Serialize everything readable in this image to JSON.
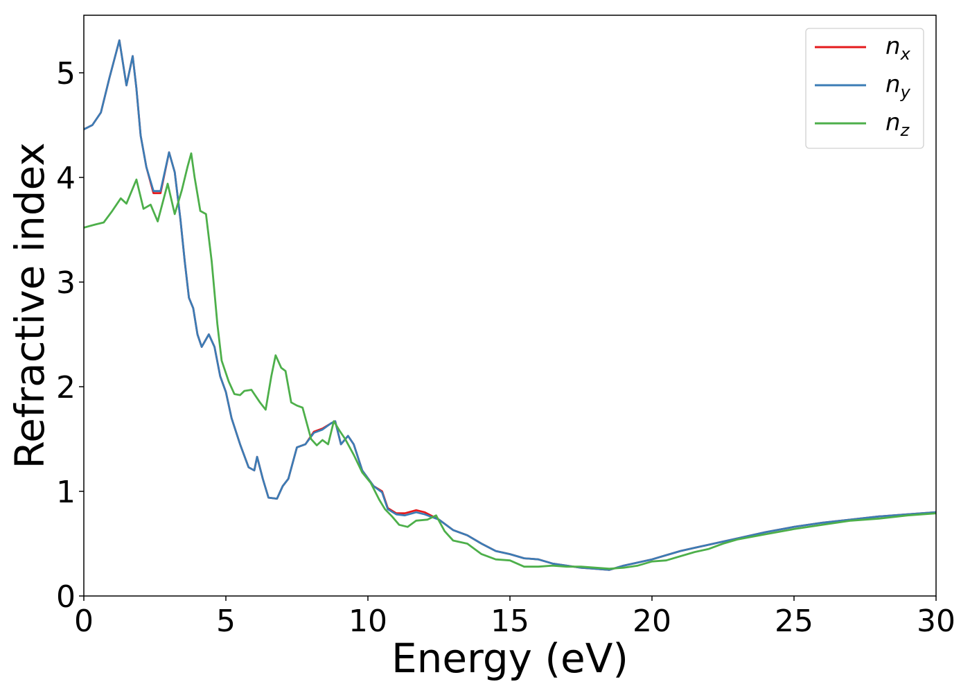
{
  "chart_data": {
    "type": "line",
    "title": "",
    "xlabel": "Energy (eV)",
    "ylabel": "Refractive index",
    "xlim": [
      0,
      30
    ],
    "ylim": [
      0,
      5.55
    ],
    "xticks": [
      0,
      5,
      10,
      15,
      20,
      25,
      30
    ],
    "yticks": [
      0,
      1,
      2,
      3,
      4,
      5
    ],
    "grid": false,
    "legend_position": "top-right",
    "series": [
      {
        "name": "n_x",
        "label_base": "n",
        "label_sub": "x",
        "color": "#e41a1c",
        "points": [
          [
            0,
            4.46
          ],
          [
            0.3,
            4.5
          ],
          [
            0.6,
            4.62
          ],
          [
            0.9,
            4.95
          ],
          [
            1.25,
            5.31
          ],
          [
            1.5,
            4.88
          ],
          [
            1.72,
            5.16
          ],
          [
            1.85,
            4.85
          ],
          [
            2.0,
            4.4
          ],
          [
            2.2,
            4.1
          ],
          [
            2.45,
            3.85
          ],
          [
            2.7,
            3.85
          ],
          [
            3.0,
            4.24
          ],
          [
            3.2,
            4.05
          ],
          [
            3.4,
            3.6
          ],
          [
            3.55,
            3.2
          ],
          [
            3.7,
            2.85
          ],
          [
            3.85,
            2.75
          ],
          [
            4.0,
            2.5
          ],
          [
            4.15,
            2.38
          ],
          [
            4.4,
            2.5
          ],
          [
            4.6,
            2.38
          ],
          [
            4.8,
            2.1
          ],
          [
            5.0,
            1.95
          ],
          [
            5.2,
            1.7
          ],
          [
            5.5,
            1.45
          ],
          [
            5.8,
            1.23
          ],
          [
            6.0,
            1.2
          ],
          [
            6.1,
            1.33
          ],
          [
            6.3,
            1.12
          ],
          [
            6.5,
            0.94
          ],
          [
            6.8,
            0.93
          ],
          [
            7.0,
            1.05
          ],
          [
            7.2,
            1.12
          ],
          [
            7.5,
            1.42
          ],
          [
            7.8,
            1.45
          ],
          [
            8.1,
            1.57
          ],
          [
            8.4,
            1.6
          ],
          [
            8.7,
            1.65
          ],
          [
            8.85,
            1.67
          ],
          [
            9.05,
            1.45
          ],
          [
            9.3,
            1.53
          ],
          [
            9.5,
            1.45
          ],
          [
            9.8,
            1.2
          ],
          [
            10.2,
            1.05
          ],
          [
            10.5,
            1.0
          ],
          [
            10.7,
            0.84
          ],
          [
            11.0,
            0.79
          ],
          [
            11.3,
            0.79
          ],
          [
            11.7,
            0.82
          ],
          [
            12.0,
            0.8
          ],
          [
            12.5,
            0.73
          ],
          [
            13.0,
            0.63
          ],
          [
            13.5,
            0.58
          ],
          [
            14.0,
            0.5
          ],
          [
            14.5,
            0.43
          ],
          [
            15.0,
            0.4
          ],
          [
            15.5,
            0.36
          ],
          [
            16.0,
            0.35
          ],
          [
            16.5,
            0.31
          ],
          [
            17.0,
            0.29
          ],
          [
            17.5,
            0.27
          ],
          [
            18.0,
            0.26
          ],
          [
            18.5,
            0.25
          ],
          [
            19.0,
            0.29
          ],
          [
            19.5,
            0.32
          ],
          [
            20.0,
            0.35
          ],
          [
            20.5,
            0.39
          ],
          [
            21.0,
            0.43
          ],
          [
            21.5,
            0.46
          ],
          [
            22.0,
            0.49
          ],
          [
            22.5,
            0.52
          ],
          [
            23.0,
            0.55
          ],
          [
            24.0,
            0.61
          ],
          [
            25.0,
            0.66
          ],
          [
            26.0,
            0.7
          ],
          [
            27.0,
            0.73
          ],
          [
            28.0,
            0.76
          ],
          [
            29.0,
            0.78
          ],
          [
            30.0,
            0.8
          ]
        ]
      },
      {
        "name": "n_y",
        "label_base": "n",
        "label_sub": "y",
        "color": "#3b7cb5",
        "points": [
          [
            0,
            4.46
          ],
          [
            0.3,
            4.5
          ],
          [
            0.6,
            4.62
          ],
          [
            0.9,
            4.95
          ],
          [
            1.25,
            5.31
          ],
          [
            1.5,
            4.88
          ],
          [
            1.72,
            5.16
          ],
          [
            1.85,
            4.85
          ],
          [
            2.0,
            4.4
          ],
          [
            2.2,
            4.1
          ],
          [
            2.45,
            3.87
          ],
          [
            2.7,
            3.87
          ],
          [
            3.0,
            4.24
          ],
          [
            3.2,
            4.05
          ],
          [
            3.4,
            3.6
          ],
          [
            3.55,
            3.2
          ],
          [
            3.7,
            2.85
          ],
          [
            3.85,
            2.75
          ],
          [
            4.0,
            2.5
          ],
          [
            4.15,
            2.38
          ],
          [
            4.4,
            2.5
          ],
          [
            4.6,
            2.38
          ],
          [
            4.8,
            2.1
          ],
          [
            5.0,
            1.95
          ],
          [
            5.2,
            1.7
          ],
          [
            5.5,
            1.45
          ],
          [
            5.8,
            1.23
          ],
          [
            6.0,
            1.2
          ],
          [
            6.1,
            1.33
          ],
          [
            6.3,
            1.12
          ],
          [
            6.5,
            0.94
          ],
          [
            6.8,
            0.93
          ],
          [
            7.0,
            1.05
          ],
          [
            7.2,
            1.12
          ],
          [
            7.5,
            1.42
          ],
          [
            7.8,
            1.45
          ],
          [
            8.1,
            1.56
          ],
          [
            8.4,
            1.59
          ],
          [
            8.7,
            1.65
          ],
          [
            8.85,
            1.67
          ],
          [
            9.05,
            1.45
          ],
          [
            9.3,
            1.53
          ],
          [
            9.5,
            1.45
          ],
          [
            9.8,
            1.2
          ],
          [
            10.2,
            1.05
          ],
          [
            10.5,
            0.99
          ],
          [
            10.7,
            0.83
          ],
          [
            11.0,
            0.78
          ],
          [
            11.3,
            0.77
          ],
          [
            11.7,
            0.8
          ],
          [
            12.0,
            0.78
          ],
          [
            12.5,
            0.73
          ],
          [
            13.0,
            0.63
          ],
          [
            13.5,
            0.58
          ],
          [
            14.0,
            0.5
          ],
          [
            14.5,
            0.43
          ],
          [
            15.0,
            0.4
          ],
          [
            15.5,
            0.36
          ],
          [
            16.0,
            0.35
          ],
          [
            16.5,
            0.31
          ],
          [
            17.0,
            0.29
          ],
          [
            17.5,
            0.27
          ],
          [
            18.0,
            0.26
          ],
          [
            18.5,
            0.25
          ],
          [
            19.0,
            0.29
          ],
          [
            19.5,
            0.32
          ],
          [
            20.0,
            0.35
          ],
          [
            20.5,
            0.39
          ],
          [
            21.0,
            0.43
          ],
          [
            21.5,
            0.46
          ],
          [
            22.0,
            0.49
          ],
          [
            22.5,
            0.52
          ],
          [
            23.0,
            0.55
          ],
          [
            24.0,
            0.61
          ],
          [
            25.0,
            0.66
          ],
          [
            26.0,
            0.7
          ],
          [
            27.0,
            0.73
          ],
          [
            28.0,
            0.76
          ],
          [
            29.0,
            0.78
          ],
          [
            30.0,
            0.8
          ]
        ]
      },
      {
        "name": "n_z",
        "label_base": "n",
        "label_sub": "z",
        "color": "#4daf4a",
        "points": [
          [
            0,
            3.52
          ],
          [
            0.4,
            3.55
          ],
          [
            0.7,
            3.57
          ],
          [
            1.0,
            3.68
          ],
          [
            1.3,
            3.8
          ],
          [
            1.5,
            3.75
          ],
          [
            1.85,
            3.98
          ],
          [
            2.1,
            3.7
          ],
          [
            2.35,
            3.74
          ],
          [
            2.6,
            3.58
          ],
          [
            2.95,
            3.94
          ],
          [
            3.2,
            3.65
          ],
          [
            3.45,
            3.88
          ],
          [
            3.65,
            4.1
          ],
          [
            3.78,
            4.23
          ],
          [
            3.9,
            4.0
          ],
          [
            4.1,
            3.68
          ],
          [
            4.3,
            3.65
          ],
          [
            4.5,
            3.2
          ],
          [
            4.7,
            2.6
          ],
          [
            4.85,
            2.25
          ],
          [
            5.1,
            2.05
          ],
          [
            5.3,
            1.93
          ],
          [
            5.5,
            1.92
          ],
          [
            5.65,
            1.96
          ],
          [
            5.9,
            1.97
          ],
          [
            6.2,
            1.85
          ],
          [
            6.4,
            1.78
          ],
          [
            6.6,
            2.1
          ],
          [
            6.75,
            2.3
          ],
          [
            6.95,
            2.18
          ],
          [
            7.1,
            2.15
          ],
          [
            7.3,
            1.85
          ],
          [
            7.5,
            1.82
          ],
          [
            7.7,
            1.8
          ],
          [
            8.0,
            1.5
          ],
          [
            8.2,
            1.44
          ],
          [
            8.4,
            1.49
          ],
          [
            8.6,
            1.45
          ],
          [
            8.8,
            1.67
          ],
          [
            9.0,
            1.58
          ],
          [
            9.2,
            1.5
          ],
          [
            9.5,
            1.35
          ],
          [
            9.8,
            1.18
          ],
          [
            10.1,
            1.08
          ],
          [
            10.4,
            0.92
          ],
          [
            10.6,
            0.83
          ],
          [
            10.85,
            0.76
          ],
          [
            11.1,
            0.68
          ],
          [
            11.4,
            0.66
          ],
          [
            11.7,
            0.72
          ],
          [
            12.1,
            0.73
          ],
          [
            12.4,
            0.77
          ],
          [
            12.7,
            0.62
          ],
          [
            13.0,
            0.53
          ],
          [
            13.5,
            0.5
          ],
          [
            14.0,
            0.4
          ],
          [
            14.5,
            0.35
          ],
          [
            15.0,
            0.34
          ],
          [
            15.5,
            0.28
          ],
          [
            16.0,
            0.28
          ],
          [
            16.5,
            0.29
          ],
          [
            17.0,
            0.28
          ],
          [
            17.5,
            0.28
          ],
          [
            18.0,
            0.27
          ],
          [
            18.5,
            0.26
          ],
          [
            19.0,
            0.27
          ],
          [
            19.5,
            0.29
          ],
          [
            20.0,
            0.33
          ],
          [
            20.5,
            0.34
          ],
          [
            21.0,
            0.38
          ],
          [
            21.5,
            0.42
          ],
          [
            22.0,
            0.45
          ],
          [
            22.5,
            0.5
          ],
          [
            23.0,
            0.54
          ],
          [
            24.0,
            0.59
          ],
          [
            25.0,
            0.64
          ],
          [
            26.0,
            0.68
          ],
          [
            27.0,
            0.72
          ],
          [
            28.0,
            0.74
          ],
          [
            29.0,
            0.77
          ],
          [
            30.0,
            0.79
          ]
        ]
      }
    ]
  }
}
